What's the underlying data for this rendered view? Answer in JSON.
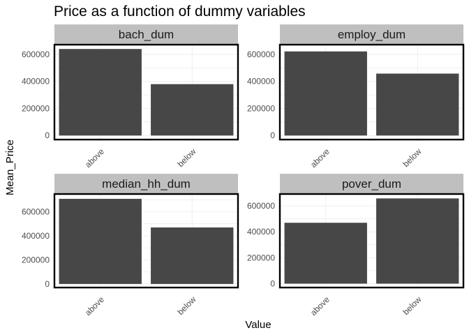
{
  "chart_data": {
    "type": "bar",
    "title": "Price as a function of dummy variables",
    "xlabel": "Value",
    "ylabel": "Mean_Price",
    "bar_color": "#474747",
    "strip_color": "#bfbfbf",
    "grid": true,
    "legend": "none",
    "categories": [
      "above",
      "below"
    ],
    "yticks": [
      0,
      200000,
      400000,
      600000
    ],
    "ytick_labels": [
      "0",
      "200000",
      "400000",
      "600000"
    ],
    "panels": [
      {
        "label": "bach_dum",
        "values": [
          640000,
          380000
        ],
        "ylim": [
          -30000,
          672000
        ]
      },
      {
        "label": "employ_dum",
        "values": [
          622000,
          458000
        ],
        "ylim": [
          -30000,
          672000
        ]
      },
      {
        "label": "median_hh_dum",
        "values": [
          708000,
          470000
        ],
        "ylim": [
          -30000,
          748000
        ]
      },
      {
        "label": "pover_dum",
        "values": [
          470000,
          658000
        ],
        "ylim": [
          -30000,
          692000
        ]
      }
    ]
  }
}
